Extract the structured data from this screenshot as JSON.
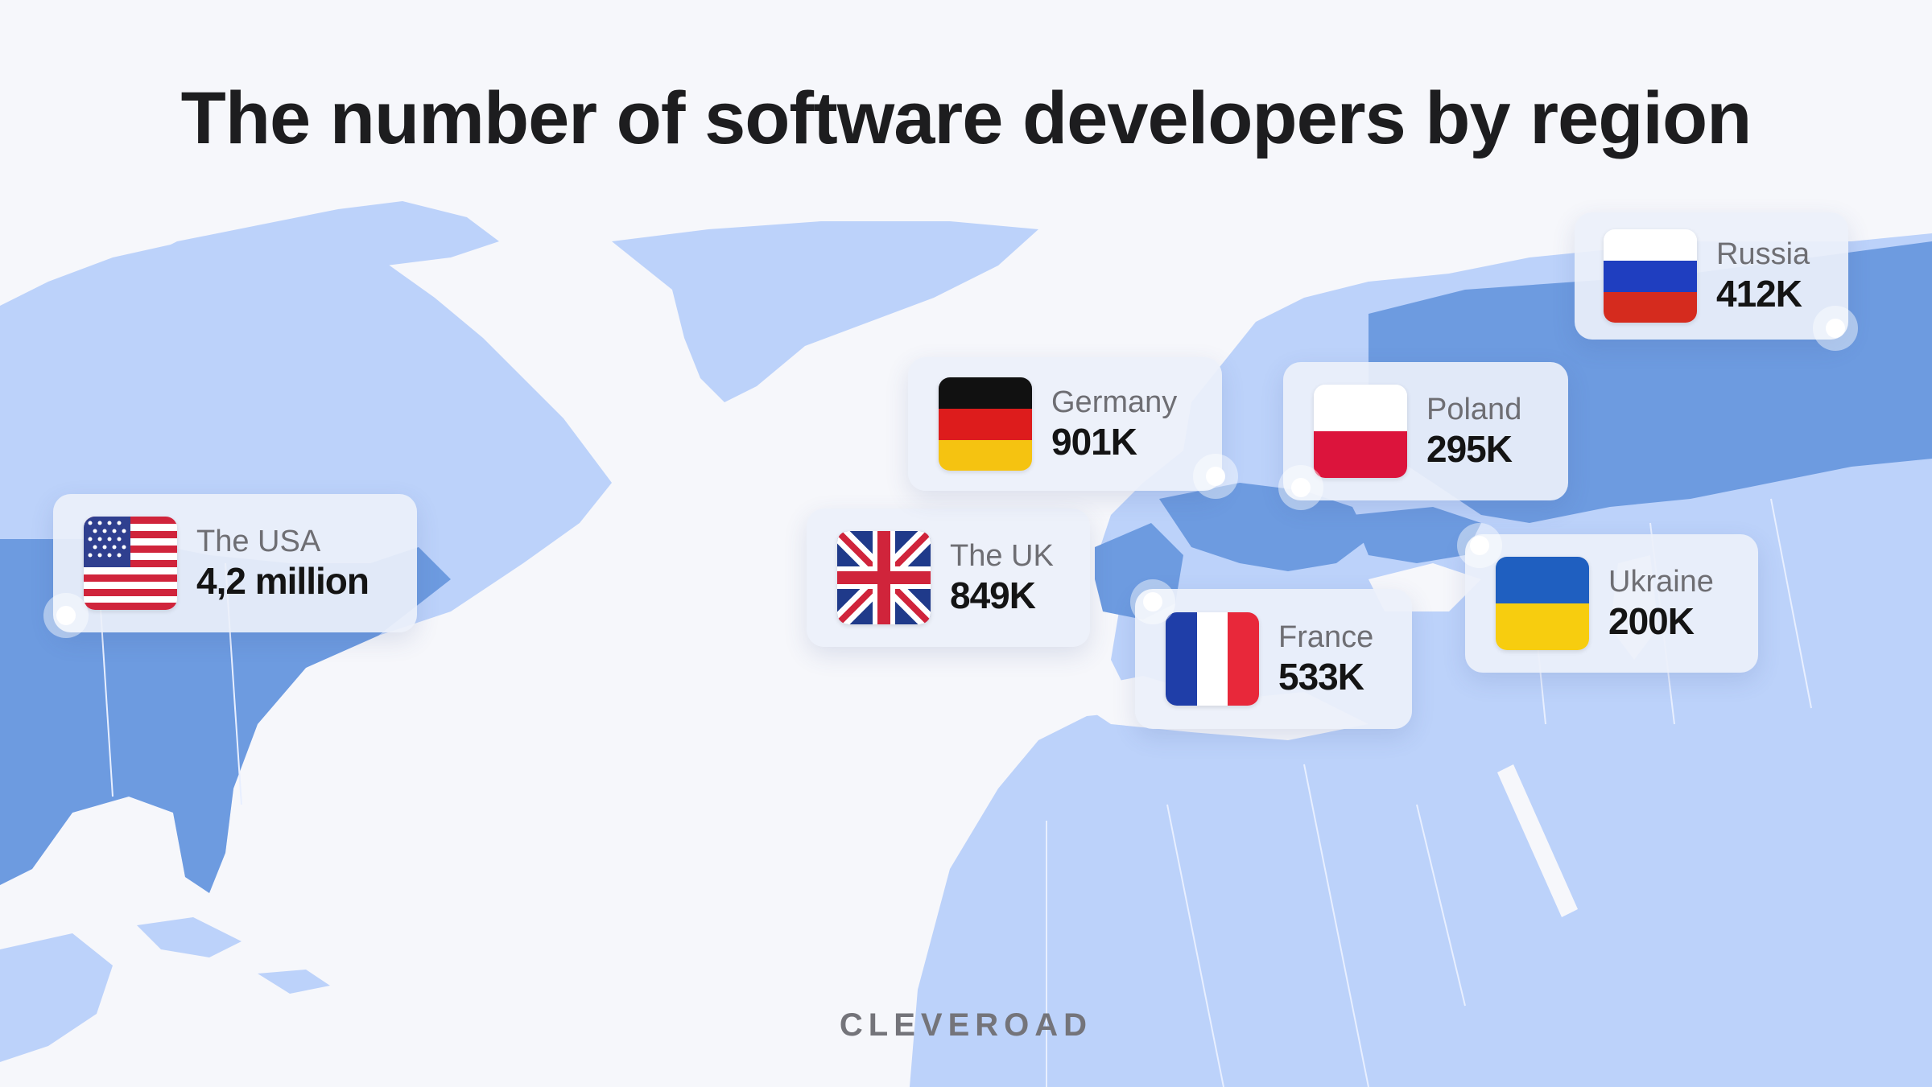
{
  "title": "The number of software developers by region",
  "brand": "CLEVEROAD",
  "colors": {
    "background": "#f6f7fb",
    "land": "#bcd2fa",
    "land_highlight": "#6d9be0",
    "card": "#ecf0fa"
  },
  "regions": [
    {
      "country": "The USA",
      "value": "4,2 million",
      "flag": "usa-flag-icon"
    },
    {
      "country": "The UK",
      "value": "849K",
      "flag": "uk-flag-icon"
    },
    {
      "country": "Germany",
      "value": "901K",
      "flag": "germany-flag-icon"
    },
    {
      "country": "France",
      "value": "533K",
      "flag": "france-flag-icon"
    },
    {
      "country": "Poland",
      "value": "295K",
      "flag": "poland-flag-icon"
    },
    {
      "country": "Ukraine",
      "value": "200K",
      "flag": "ukraine-flag-icon"
    },
    {
      "country": "Russia",
      "value": "412K",
      "flag": "russia-flag-icon"
    }
  ]
}
